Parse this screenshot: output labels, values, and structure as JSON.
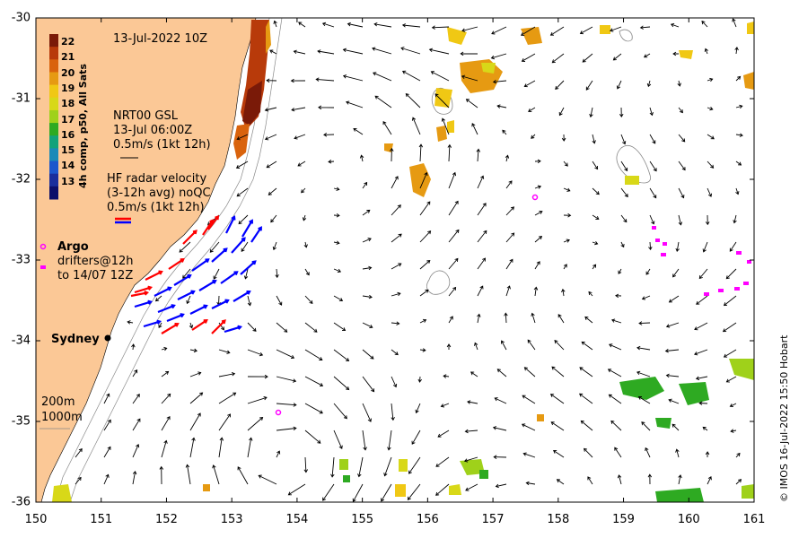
{
  "map": {
    "title": "13-Jul-2022 10Z",
    "colorbar": {
      "label": "4h comp, p50, All Sats",
      "ticks": [
        "22",
        "21",
        "20",
        "19",
        "18",
        "17",
        "16",
        "15",
        "14",
        "13"
      ],
      "colors": [
        "#7a1a08",
        "#b83a0a",
        "#d9630d",
        "#e69a12",
        "#f0c814",
        "#d8d818",
        "#9fd11a",
        "#2eaa22",
        "#13a27a",
        "#1a8ab8",
        "#1c56cc",
        "#1a2e9c",
        "#0c0f6a"
      ]
    },
    "vector_key": {
      "line1": "NRT00 GSL",
      "line2": "13-Jul 06:00Z",
      "line3": "0.5m/s (1kt 12h)"
    },
    "hf_radar": {
      "line1": "HF radar velocity",
      "line2": "(3-12h avg) noQC",
      "line3": "0.5m/s (1kt 12h)"
    },
    "argo": {
      "label": "Argo"
    },
    "drifters": {
      "line1": "drifters@12h",
      "line2": "to 14/07 12Z"
    },
    "city": {
      "label": "Sydney"
    },
    "isobaths": {
      "line1": "200m",
      "line2": "1000m"
    },
    "credit": "© IMOS 16-Jul-2022 15:50 Hobart",
    "x_ticks": [
      "150",
      "151",
      "152",
      "153",
      "154",
      "155",
      "156",
      "157",
      "158",
      "159",
      "160",
      "161"
    ],
    "y_ticks": [
      "-30",
      "-31",
      "-32",
      "-33",
      "-34",
      "-35",
      "-36"
    ],
    "colors": {
      "land": "#fbc896",
      "argo": "#ff00ff",
      "hf_red": "#ff0000",
      "hf_blue": "#0000ff",
      "vector": "#000000"
    }
  }
}
